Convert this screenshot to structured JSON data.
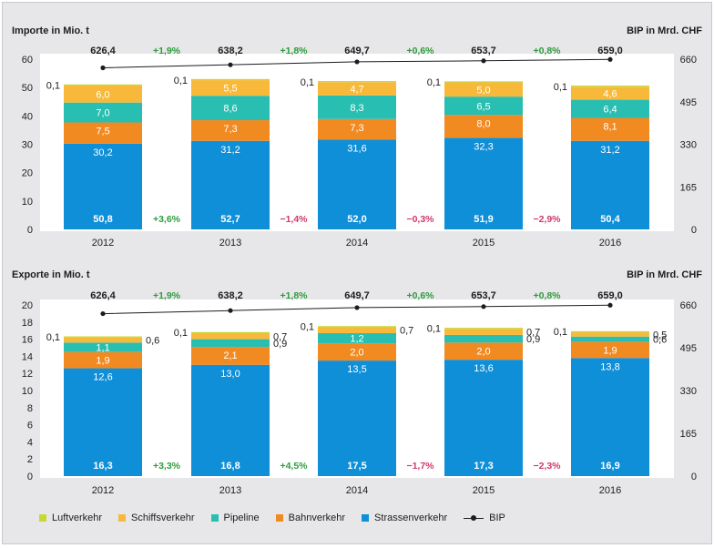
{
  "chart_data": [
    {
      "type": "bar",
      "title": "Importe in Mio. t",
      "right_title": "BIP in Mrd. CHF",
      "categories": [
        "2012",
        "2013",
        "2014",
        "2015",
        "2016"
      ],
      "ylim": [
        0,
        60
      ],
      "yticks": [
        "0",
        "10",
        "20",
        "30",
        "40",
        "50",
        "60"
      ],
      "y2lim": [
        0,
        660
      ],
      "y2ticks": [
        "0",
        "165",
        "330",
        "495",
        "660"
      ],
      "stacked": true,
      "series": [
        {
          "name": "Strassenverkehr",
          "values": [
            30.2,
            31.2,
            31.6,
            32.3,
            31.2
          ],
          "labels": [
            "30,2",
            "31,2",
            "31,6",
            "32,3",
            "31,2"
          ]
        },
        {
          "name": "Bahnverkehr",
          "values": [
            7.5,
            7.3,
            7.3,
            8.0,
            8.1
          ],
          "labels": [
            "7,5",
            "7,3",
            "7,3",
            "8,0",
            "8,1"
          ]
        },
        {
          "name": "Pipeline",
          "values": [
            7.0,
            8.6,
            8.3,
            6.5,
            6.4
          ],
          "labels": [
            "7,0",
            "8,6",
            "8,3",
            "6,5",
            "6,4"
          ]
        },
        {
          "name": "Schiffsverkehr",
          "values": [
            6.0,
            5.5,
            4.7,
            5.0,
            4.6
          ],
          "labels": [
            "6,0",
            "5,5",
            "4,7",
            "5,0",
            "4,6"
          ]
        },
        {
          "name": "Luftverkehr",
          "values": [
            0.1,
            0.1,
            0.1,
            0.1,
            0.1
          ],
          "labels": [
            "0,1",
            "0,1",
            "0,1",
            "0,1",
            "0,1"
          ]
        }
      ],
      "totals": [
        "50,8",
        "52,7",
        "52,0",
        "51,9",
        "50,4"
      ],
      "total_changes": [
        {
          "text": "+3,6%",
          "positive": true
        },
        {
          "text": "−1,4%",
          "positive": false
        },
        {
          "text": "−0,3%",
          "positive": false
        },
        {
          "text": "−2,9%",
          "positive": false
        }
      ],
      "bip": {
        "name": "BIP",
        "values": [
          626.4,
          638.2,
          649.7,
          653.7,
          659.0
        ],
        "labels": [
          "626,4",
          "638,2",
          "649,7",
          "653,7",
          "659,0"
        ]
      },
      "bip_changes": [
        "+1,9%",
        "+1,8%",
        "+0,6%",
        "+0,8%"
      ]
    },
    {
      "type": "bar",
      "title": "Exporte in Mio. t",
      "right_title": "BIP in Mrd. CHF",
      "categories": [
        "2012",
        "2013",
        "2014",
        "2015",
        "2016"
      ],
      "ylim": [
        0,
        20
      ],
      "yticks": [
        "0",
        "2",
        "4",
        "6",
        "8",
        "10",
        "12",
        "14",
        "16",
        "18",
        "20"
      ],
      "y2lim": [
        0,
        660
      ],
      "y2ticks": [
        "0",
        "165",
        "330",
        "495",
        "660"
      ],
      "stacked": true,
      "series": [
        {
          "name": "Strassenverkehr",
          "values": [
            12.6,
            13.0,
            13.5,
            13.6,
            13.8
          ],
          "labels": [
            "12,6",
            "13,0",
            "13,5",
            "13,6",
            "13,8"
          ]
        },
        {
          "name": "Bahnverkehr",
          "values": [
            1.9,
            2.1,
            2.0,
            2.0,
            1.9
          ],
          "labels": [
            "1,9",
            "2,1",
            "2,0",
            "2,0",
            "1,9"
          ]
        },
        {
          "name": "Pipeline",
          "values": [
            1.1,
            0.9,
            1.2,
            0.9,
            0.6
          ],
          "labels": [
            "1,1",
            "0,9",
            "1,2",
            "0,9",
            "0,6"
          ]
        },
        {
          "name": "Schiffsverkehr",
          "values": [
            0.6,
            0.7,
            0.7,
            0.7,
            0.5
          ],
          "labels": [
            "0,6",
            "0,7",
            "0,7",
            "0,7",
            "0,5"
          ]
        },
        {
          "name": "Luftverkehr",
          "values": [
            0.1,
            0.1,
            0.1,
            0.1,
            0.1
          ],
          "labels": [
            "0,1",
            "0,1",
            "0,1",
            "0,1",
            "0,1"
          ]
        }
      ],
      "totals": [
        "16,3",
        "16,8",
        "17,5",
        "17,3",
        "16,9"
      ],
      "total_changes": [
        {
          "text": "+3,3%",
          "positive": true
        },
        {
          "text": "+4,5%",
          "positive": true
        },
        {
          "text": "−1,7%",
          "positive": false
        },
        {
          "text": "−2,3%",
          "positive": false
        }
      ],
      "bip": {
        "name": "BIP",
        "values": [
          626.4,
          638.2,
          649.7,
          653.7,
          659.0
        ],
        "labels": [
          "626,4",
          "638,2",
          "649,7",
          "653,7",
          "659,0"
        ]
      },
      "bip_changes": [
        "+1,9%",
        "+1,8%",
        "+0,6%",
        "+0,8%"
      ]
    }
  ],
  "colors": {
    "Strassenverkehr": "#0f8fd8",
    "Bahnverkehr": "#f28a22",
    "Pipeline": "#28bfb2",
    "Schiffsverkehr": "#f8b93a",
    "Luftverkehr": "#c5d833",
    "bip_line": "#1d1d1f",
    "positive_change": "#2f9b3e",
    "negative_change": "#d2386a",
    "plot_background": "#ffffff",
    "frame_background": "#e7e7e9"
  },
  "legend": {
    "items": [
      {
        "label": "Luftverkehr",
        "color": "#c5d833"
      },
      {
        "label": "Schiffsverkehr",
        "color": "#f8b93a"
      },
      {
        "label": "Pipeline",
        "color": "#28bfb2"
      },
      {
        "label": "Bahnverkehr",
        "color": "#f28a22"
      },
      {
        "label": "Strassenverkehr",
        "color": "#0f8fd8"
      }
    ],
    "bip_label": "BIP"
  }
}
